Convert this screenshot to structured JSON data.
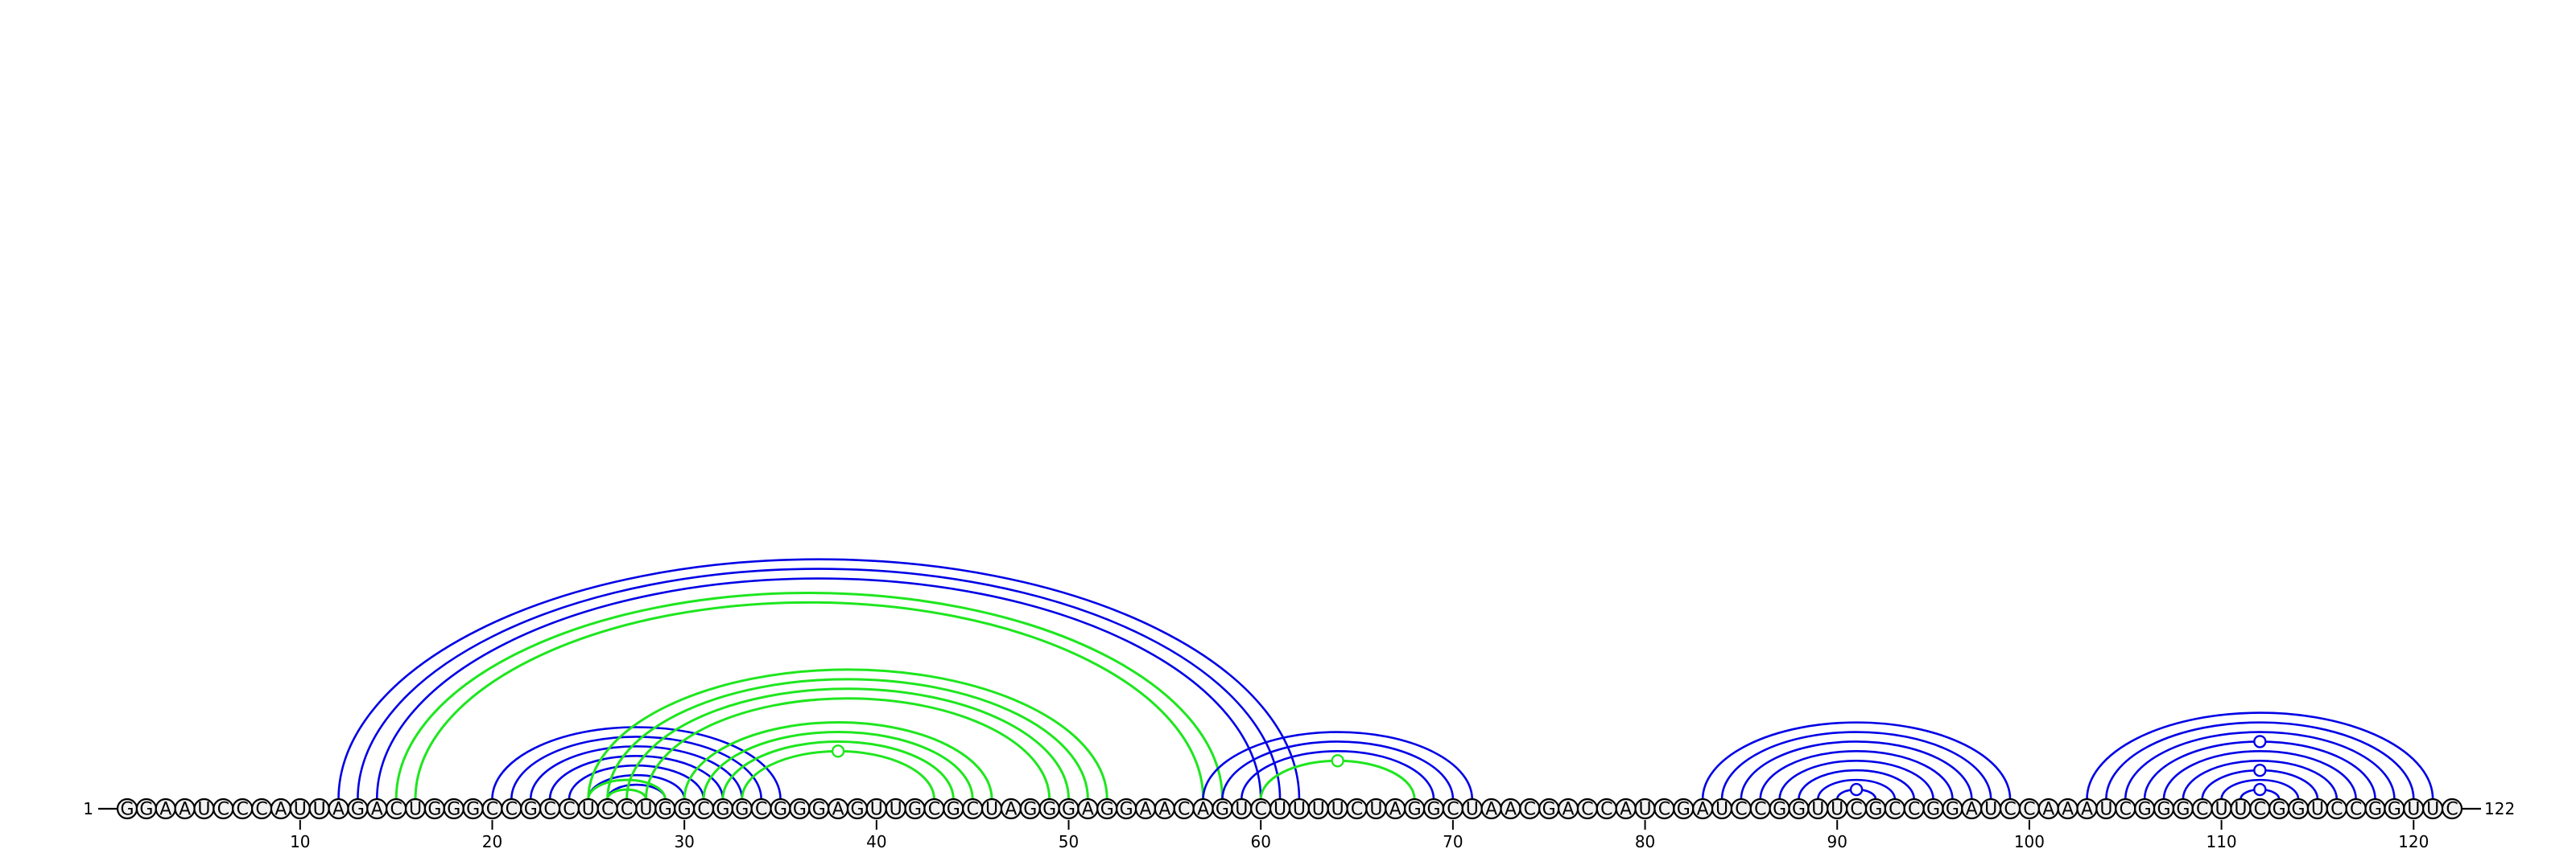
{
  "sequence": "GGAAUCCCAUUAGACUGGGCCGCCUCCUGGCGGCGGGAGUUGCGCUAGGGAGGAACAGUCUUUUCUAGGCUAACGACCAUCGAUCCGGUUCGCCGGAUCCAAAUCGGGCUUCGGUCCGGUUC",
  "start_label": "1",
  "end_label": "122",
  "tick_labels": [
    "10",
    "20",
    "30",
    "40",
    "50",
    "60",
    "70",
    "80",
    "90",
    "100",
    "110",
    "120"
  ],
  "colors": {
    "blue": "#0000e6",
    "green": "#1ee61e"
  },
  "chart_data": {
    "type": "arc-diagram",
    "length": 122,
    "ticks": [
      10,
      20,
      30,
      40,
      50,
      60,
      70,
      80,
      90,
      100,
      110,
      120
    ],
    "arcs": [
      {
        "i": 12,
        "j": 62,
        "color": "blue"
      },
      {
        "i": 13,
        "j": 61,
        "color": "blue"
      },
      {
        "i": 14,
        "j": 60,
        "color": "blue"
      },
      {
        "i": 15,
        "j": 58,
        "color": "green"
      },
      {
        "i": 16,
        "j": 57,
        "color": "green"
      },
      {
        "i": 20,
        "j": 35,
        "color": "blue"
      },
      {
        "i": 21,
        "j": 34,
        "color": "blue"
      },
      {
        "i": 22,
        "j": 33,
        "color": "blue"
      },
      {
        "i": 23,
        "j": 32,
        "color": "blue"
      },
      {
        "i": 24,
        "j": 31,
        "color": "blue"
      },
      {
        "i": 25,
        "j": 30,
        "color": "blue"
      },
      {
        "i": 26,
        "j": 29,
        "color": "blue"
      },
      {
        "i": 25,
        "j": 52,
        "color": "green"
      },
      {
        "i": 26,
        "j": 51,
        "color": "green"
      },
      {
        "i": 27,
        "j": 50,
        "color": "green"
      },
      {
        "i": 28,
        "j": 49,
        "color": "green"
      },
      {
        "i": 25,
        "j": 29,
        "color": "green"
      },
      {
        "i": 26,
        "j": 28,
        "color": "green"
      },
      {
        "i": 30,
        "j": 46,
        "color": "green"
      },
      {
        "i": 31,
        "j": 45,
        "color": "green"
      },
      {
        "i": 32,
        "j": 44,
        "color": "green"
      },
      {
        "i": 33,
        "j": 43,
        "color": "green"
      },
      {
        "i": 57,
        "j": 71,
        "color": "blue"
      },
      {
        "i": 58,
        "j": 70,
        "color": "blue"
      },
      {
        "i": 59,
        "j": 69,
        "color": "blue"
      },
      {
        "i": 60,
        "j": 68,
        "color": "green"
      },
      {
        "i": 83,
        "j": 99,
        "color": "blue"
      },
      {
        "i": 84,
        "j": 98,
        "color": "blue"
      },
      {
        "i": 85,
        "j": 97,
        "color": "blue"
      },
      {
        "i": 86,
        "j": 96,
        "color": "blue"
      },
      {
        "i": 87,
        "j": 95,
        "color": "blue"
      },
      {
        "i": 88,
        "j": 94,
        "color": "blue"
      },
      {
        "i": 89,
        "j": 93,
        "color": "blue"
      },
      {
        "i": 90,
        "j": 92,
        "color": "blue"
      },
      {
        "i": 103,
        "j": 121,
        "color": "blue"
      },
      {
        "i": 104,
        "j": 120,
        "color": "blue"
      },
      {
        "i": 105,
        "j": 119,
        "color": "blue"
      },
      {
        "i": 106,
        "j": 118,
        "color": "blue"
      },
      {
        "i": 107,
        "j": 117,
        "color": "blue"
      },
      {
        "i": 108,
        "j": 116,
        "color": "blue"
      },
      {
        "i": 109,
        "j": 115,
        "color": "blue"
      },
      {
        "i": 110,
        "j": 114,
        "color": "blue"
      },
      {
        "i": 111,
        "j": 113,
        "color": "blue"
      }
    ],
    "bulges": [
      {
        "i": 33,
        "j": 43,
        "color": "green"
      },
      {
        "i": 60,
        "j": 68,
        "color": "green"
      },
      {
        "i": 90,
        "j": 92,
        "color": "blue"
      },
      {
        "i": 106,
        "j": 118,
        "color": "blue"
      },
      {
        "i": 109,
        "j": 115,
        "color": "blue"
      },
      {
        "i": 111,
        "j": 113,
        "color": "blue"
      }
    ]
  }
}
